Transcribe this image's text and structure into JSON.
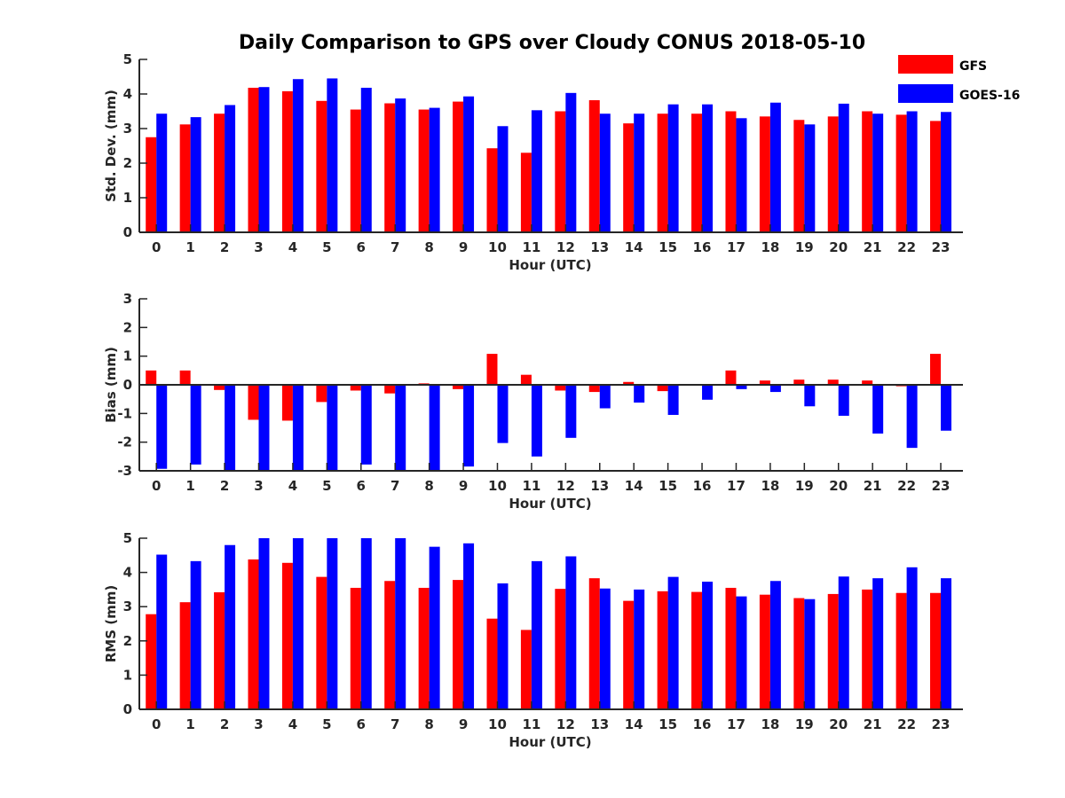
{
  "title": "Daily Comparison to GPS over Cloudy CONUS 2018-05-10",
  "colors": {
    "GFS": "#ff0000",
    "GOES-16": "#0000ff"
  },
  "legend": {
    "placement": "top-right",
    "entries": [
      "GFS",
      "GOES-16"
    ]
  },
  "chart_data": [
    {
      "type": "bar",
      "xlabel": "Hour (UTC)",
      "ylabel": "Std. Dev. (mm)",
      "ylim": [
        0,
        5
      ],
      "yticks": [
        "0",
        "1",
        "2",
        "3",
        "4",
        "5"
      ],
      "categories": [
        "0",
        "1",
        "2",
        "3",
        "4",
        "5",
        "6",
        "7",
        "8",
        "9",
        "10",
        "11",
        "12",
        "13",
        "14",
        "15",
        "16",
        "17",
        "18",
        "19",
        "20",
        "21",
        "22",
        "23"
      ],
      "series": [
        {
          "name": "GFS",
          "values": [
            2.75,
            3.12,
            3.43,
            4.18,
            4.08,
            3.8,
            3.55,
            3.73,
            3.55,
            3.78,
            2.43,
            2.3,
            3.5,
            3.82,
            3.15,
            3.43,
            3.43,
            3.5,
            3.35,
            3.25,
            3.35,
            3.5,
            3.4,
            3.22
          ]
        },
        {
          "name": "GOES-16",
          "values": [
            3.43,
            3.33,
            3.68,
            4.2,
            4.43,
            4.45,
            4.18,
            3.87,
            3.6,
            3.93,
            3.07,
            3.53,
            4.03,
            3.43,
            3.43,
            3.7,
            3.7,
            3.3,
            3.75,
            3.12,
            3.72,
            3.43,
            3.5,
            3.48
          ]
        }
      ]
    },
    {
      "type": "bar",
      "xlabel": "Hour (UTC)",
      "ylabel": "Bias (mm)",
      "ylim": [
        -3,
        3
      ],
      "yticks": [
        "-3",
        "-2",
        "-1",
        "0",
        "1",
        "2",
        "3"
      ],
      "categories": [
        "0",
        "1",
        "2",
        "3",
        "4",
        "5",
        "6",
        "7",
        "8",
        "9",
        "10",
        "11",
        "12",
        "13",
        "14",
        "15",
        "16",
        "17",
        "18",
        "19",
        "20",
        "21",
        "22",
        "23"
      ],
      "series": [
        {
          "name": "GFS",
          "values": [
            0.5,
            0.5,
            -0.18,
            -1.22,
            -1.25,
            -0.6,
            -0.2,
            -0.3,
            0.05,
            -0.15,
            1.08,
            0.35,
            -0.2,
            -0.25,
            0.1,
            -0.22,
            0.02,
            0.5,
            0.15,
            0.18,
            0.18,
            0.15,
            -0.05,
            1.08
          ]
        },
        {
          "name": "GOES-16",
          "values": [
            -2.93,
            -2.78,
            -3.0,
            -3.0,
            -3.0,
            -3.0,
            -2.78,
            -3.0,
            -3.0,
            -2.85,
            -2.03,
            -2.5,
            -1.85,
            -0.82,
            -0.62,
            -1.05,
            -0.52,
            -0.15,
            -0.25,
            -0.75,
            -1.08,
            -1.7,
            -2.2,
            -1.6
          ]
        }
      ]
    },
    {
      "type": "bar",
      "xlabel": "Hour (UTC)",
      "ylabel": "RMS (mm)",
      "ylim": [
        0,
        5
      ],
      "yticks": [
        "0",
        "1",
        "2",
        "3",
        "4",
        "5"
      ],
      "categories": [
        "0",
        "1",
        "2",
        "3",
        "4",
        "5",
        "6",
        "7",
        "8",
        "9",
        "10",
        "11",
        "12",
        "13",
        "14",
        "15",
        "16",
        "17",
        "18",
        "19",
        "20",
        "21",
        "22",
        "23"
      ],
      "series": [
        {
          "name": "GFS",
          "values": [
            2.78,
            3.13,
            3.42,
            4.38,
            4.28,
            3.87,
            3.55,
            3.75,
            3.55,
            3.78,
            2.65,
            2.32,
            3.52,
            3.83,
            3.17,
            3.45,
            3.43,
            3.55,
            3.35,
            3.25,
            3.37,
            3.5,
            3.4,
            3.4
          ]
        },
        {
          "name": "GOES-16",
          "values": [
            4.52,
            4.33,
            4.8,
            5.0,
            5.0,
            5.0,
            5.0,
            5.0,
            4.75,
            4.85,
            3.68,
            4.33,
            4.47,
            3.53,
            3.5,
            3.87,
            3.73,
            3.3,
            3.75,
            3.22,
            3.88,
            3.83,
            4.15,
            3.83
          ]
        }
      ]
    }
  ]
}
